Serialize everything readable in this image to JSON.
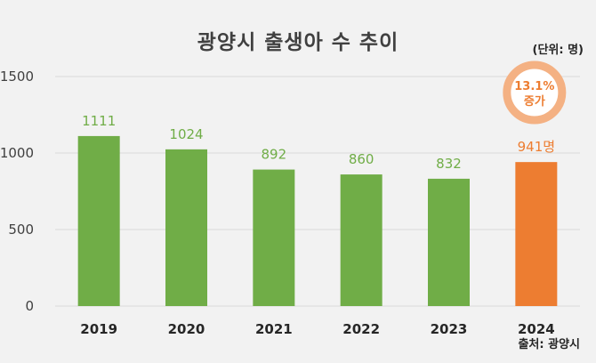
{
  "title": "광양시 출생아 수 추이",
  "unit_note": "(단위: 명)",
  "source_note": "출처: 광양시",
  "callout": {
    "line1": "13.1%",
    "line2": "증가",
    "color": "#ed7d31"
  },
  "colors": {
    "bar": "#70ad47",
    "highlight": "#ed7d31",
    "grid": "#d9d9d9"
  },
  "chart_data": {
    "type": "bar",
    "categories": [
      "2019",
      "2020",
      "2021",
      "2022",
      "2023",
      "2024"
    ],
    "values": [
      1111,
      1024,
      892,
      860,
      832,
      941
    ],
    "data_labels": [
      "1111",
      "1024",
      "892",
      "860",
      "832",
      "941명"
    ],
    "highlight_index": 5,
    "ylim": [
      0,
      1500
    ],
    "yticks": [
      0,
      500,
      1000,
      1500
    ],
    "title": "광양시 출생아 수 추이",
    "xlabel": "",
    "ylabel": "",
    "grid": true
  }
}
